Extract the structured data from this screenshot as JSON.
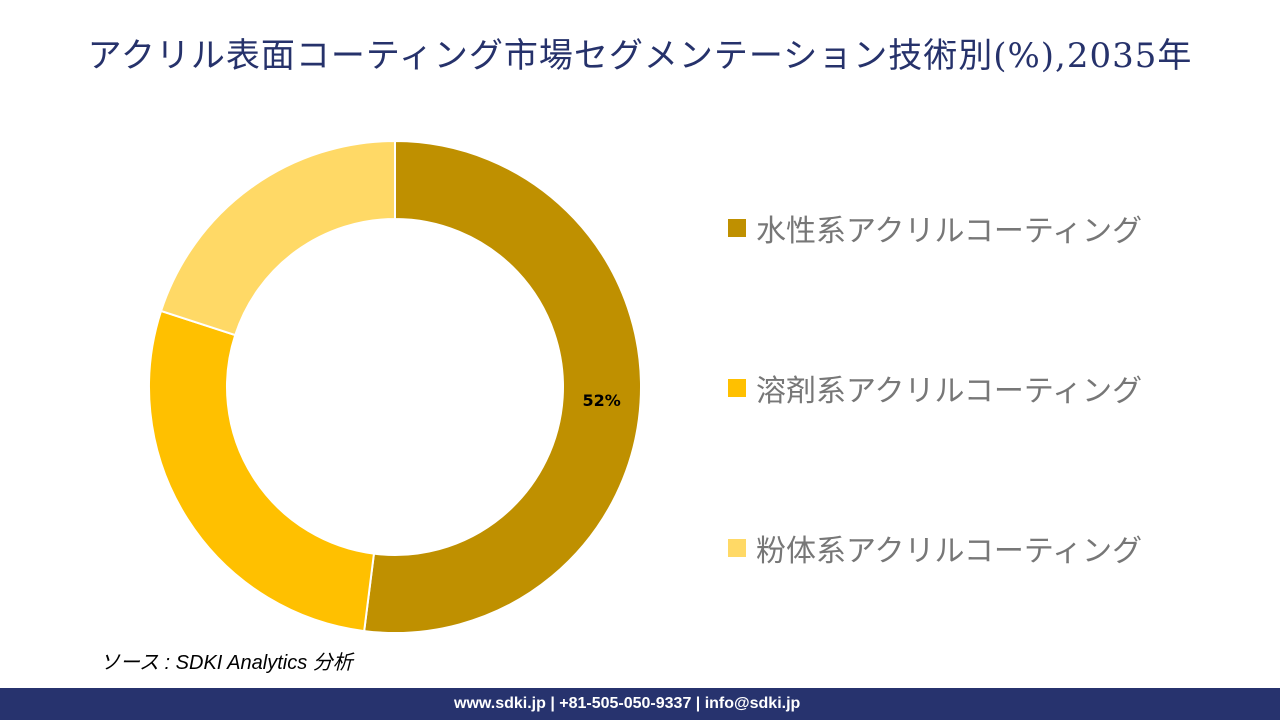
{
  "chart_data": {
    "type": "pie",
    "title": "アクリル表面コーティング市場セグメンテーション技術別(%),2035年",
    "categories": [
      "水性系アクリルコーティング",
      "溶剤系アクリルコーティング",
      "粉体系アクリルコーティング"
    ],
    "values": [
      52,
      28,
      20
    ],
    "colors": [
      "#bf9000",
      "#ffc000",
      "#ffd966"
    ],
    "data_labels": [
      "52%",
      "",
      ""
    ],
    "legend_position": "right",
    "donut": true
  },
  "source": "ソース : SDKI Analytics 分析",
  "footer": "www.sdki.jp | +81-505-050-9337 | info@sdki.jp"
}
